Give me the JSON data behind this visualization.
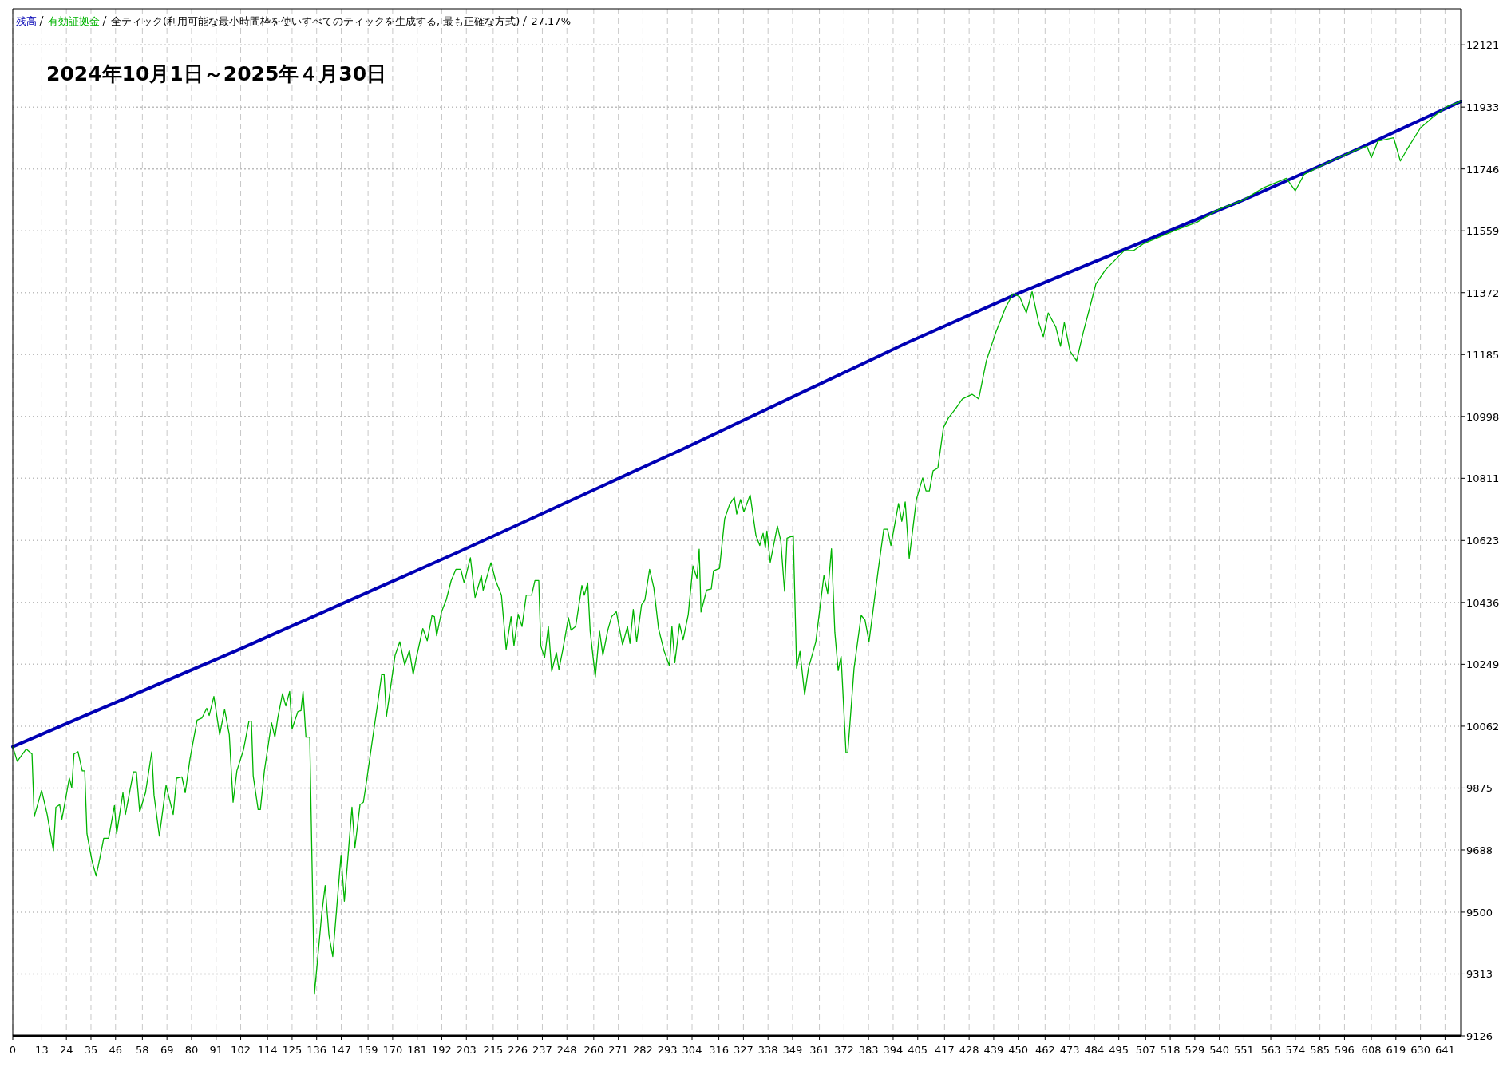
{
  "chart_data": {
    "type": "line",
    "title": "2024年10月1日～2025年４月30日",
    "subtitle": "全ティック(利用可能な最小時間枠を使いすべてのティックを生成する, 最も正確な方式)",
    "annotations": [
      "27.17%"
    ],
    "legend": "top left",
    "grid": true,
    "line_style": "solid",
    "xlim": [
      0,
      648
    ],
    "ylim": [
      9126,
      12230
    ],
    "xticks": [
      0,
      13,
      24,
      35,
      46,
      58,
      69,
      80,
      91,
      102,
      114,
      125,
      136,
      147,
      159,
      170,
      181,
      192,
      203,
      215,
      226,
      237,
      248,
      260,
      271,
      282,
      293,
      304,
      316,
      327,
      338,
      349,
      361,
      372,
      383,
      394,
      405,
      417,
      428,
      439,
      450,
      462,
      473,
      484,
      495,
      507,
      518,
      529,
      540,
      551,
      563,
      574,
      585,
      596,
      608,
      619,
      630,
      641
    ],
    "yticks": [
      9126,
      9313,
      9500,
      9688,
      9875,
      10062,
      10249,
      10436,
      10623,
      10811,
      10998,
      11185,
      11372,
      11559,
      11746,
      11933,
      12121
    ],
    "series": [
      {
        "name": "残高",
        "color": "#0000b4",
        "x": [
          0,
          100,
          200,
          300,
          400,
          450,
          500,
          550,
          600,
          648
        ],
        "values": [
          10000,
          10290,
          10590,
          10900,
          11220,
          11370,
          11510,
          11650,
          11800,
          11950
        ]
      },
      {
        "name": "有効証拠金",
        "color": "#00b400",
        "x": [
          0,
          2,
          6,
          8.6,
          9.6,
          12.9,
          15.4,
          18.2,
          19.3,
          21,
          22,
          25.3,
          26.4,
          27.4,
          29.2,
          31.1,
          32.2,
          33.2,
          35.4,
          37.3,
          39,
          40.7,
          42.9,
          45.5,
          46.5,
          49.3,
          50.4,
          54,
          55.3,
          56.8,
          59.4,
          62.2,
          63.2,
          65.6,
          68.6,
          71.8,
          73.3,
          75.7,
          77.2,
          79.3,
          82.5,
          84.7,
          86.8,
          87.9,
          90,
          92.6,
          94.8,
          96.9,
          98.6,
          100.3,
          103.3,
          105.7,
          106.8,
          107.6,
          109.8,
          110.8,
          112.6,
          115.8,
          117.3,
          118.6,
          120.7,
          122.2,
          123.9,
          125,
          127.6,
          129,
          129.9,
          131.2,
          132.9,
          134,
          135,
          138.3,
          139.8,
          141.5,
          143.2,
          146.9,
          148.4,
          151.8,
          153.1,
          155.4,
          156.9,
          158.2,
          160.8,
          163,
          165.1,
          166.2,
          167.2,
          171.1,
          173.2,
          175.4,
          177.5,
          179.2,
          180.5,
          183.5,
          185.5,
          187.6,
          188.7,
          189.7,
          191.9,
          194,
          196.2,
          198.3,
          200.5,
          202,
          204.8,
          206.9,
          209.7,
          210.5,
          214,
          216.1,
          218.7,
          220.8,
          223,
          224.3,
          226.2,
          227.9,
          229.8,
          232.2,
          233.7,
          235.4,
          236.3,
          238,
          239.7,
          241.2,
          243.3,
          244.4,
          246.1,
          248.7,
          249.8,
          251.9,
          254.7,
          255.8,
          257.3,
          258.4,
          260.7,
          262.6,
          264.1,
          266.3,
          268,
          270.1,
          272.9,
          275.1,
          276.2,
          277.7,
          279.2,
          281.4,
          282.9,
          285,
          286.9,
          289,
          291.4,
          293.9,
          295,
          296.3,
          298.4,
          300,
          302.3,
          304.4,
          306.2,
          307.2,
          308,
          310.5,
          312.6,
          313.6,
          316.3,
          318.6,
          320.8,
          322.9,
          324,
          325.7,
          327.2,
          330,
          332.6,
          334.3,
          335.8,
          336.8,
          337.5,
          339,
          342.2,
          343.7,
          345.4,
          346.5,
          349.3,
          350.8,
          352.3,
          354.4,
          356.1,
          359.4,
          363,
          364.7,
          366.4,
          367.9,
          369.4,
          370.7,
          372.9,
          373.7,
          376.5,
          379.7,
          381.4,
          383.2,
          387.2,
          389.8,
          391.5,
          393,
          394.7,
          396.4,
          397.9,
          399.4,
          401.2,
          404.4,
          407.2,
          408.7,
          410.2,
          411.9,
          414,
          416.5,
          418.7,
          422,
          425,
          429.3,
          432.3,
          435.7,
          440,
          444.2,
          447.6,
          450.6,
          453.6,
          456.2,
          459.1,
          461.2,
          463.4,
          466.8,
          468.9,
          470.6,
          473.2,
          476.1,
          479.1,
          482.5,
          484.7,
          489,
          493.2,
          497.4,
          501.7,
          506,
          520,
          530,
          540,
          550,
          560,
          570,
          574,
          578,
          590,
          600,
          606,
          608,
          611,
          618,
          621,
          624,
          630,
          636,
          642,
          648
        ],
        "values": [
          10000,
          9956,
          9993,
          9978,
          9788,
          9868,
          9795,
          9686,
          9817,
          9825,
          9781,
          9905,
          9876,
          9978,
          9985,
          9927,
          9927,
          9737,
          9657,
          9609,
          9664,
          9723,
          9723,
          9822,
          9737,
          9861,
          9795,
          9924,
          9924,
          9803,
          9861,
          9985,
          9854,
          9730,
          9883,
          9795,
          9905,
          9909,
          9861,
          9963,
          10080,
          10087,
          10116,
          10094,
          10152,
          10036,
          10113,
          10036,
          9832,
          9927,
          9992,
          10077,
          10077,
          9912,
          9810,
          9810,
          9927,
          10072,
          10029,
          10087,
          10160,
          10123,
          10167,
          10054,
          10106,
          10109,
          10167,
          10029,
          10029,
          9621,
          9252,
          9497,
          9580,
          9431,
          9366,
          9672,
          9533,
          9817,
          9694,
          9825,
          9832,
          9890,
          10014,
          10116,
          10218,
          10218,
          10090,
          10276,
          10317,
          10247,
          10291,
          10218,
          10265,
          10357,
          10320,
          10396,
          10393,
          10335,
          10408,
          10444,
          10502,
          10536,
          10536,
          10495,
          10571,
          10451,
          10517,
          10473,
          10556,
          10502,
          10458,
          10294,
          10393,
          10305,
          10400,
          10363,
          10458,
          10458,
          10502,
          10502,
          10305,
          10269,
          10363,
          10228,
          10284,
          10233,
          10291,
          10390,
          10352,
          10363,
          10487,
          10458,
          10495,
          10349,
          10211,
          10349,
          10276,
          10352,
          10393,
          10408,
          10308,
          10363,
          10312,
          10415,
          10317,
          10429,
          10444,
          10536,
          10480,
          10357,
          10291,
          10244,
          10363,
          10254,
          10371,
          10323,
          10400,
          10546,
          10509,
          10597,
          10407,
          10473,
          10477,
          10531,
          10539,
          10689,
          10732,
          10754,
          10703,
          10747,
          10710,
          10761,
          10638,
          10608,
          10645,
          10601,
          10652,
          10557,
          10667,
          10623,
          10470,
          10630,
          10638,
          10237,
          10288,
          10157,
          10237,
          10317,
          10517,
          10463,
          10598,
          10346,
          10230,
          10273,
          9982,
          9982,
          10237,
          10397,
          10383,
          10317,
          10528,
          10657,
          10657,
          10608,
          10671,
          10735,
          10681,
          10740,
          10569,
          10747,
          10812,
          10773,
          10773,
          10834,
          10842,
          10964,
          10993,
          11022,
          11051,
          11065,
          11051,
          11166,
          11253,
          11325,
          11369,
          11360,
          11311,
          11375,
          11282,
          11239,
          11311,
          11268,
          11210,
          11282,
          11195,
          11166,
          11253,
          11340,
          11398,
          11441,
          11470,
          11499,
          11500,
          11520,
          11560,
          11585,
          11625,
          11650,
          11690,
          11718,
          11680,
          11730,
          11770,
          11800,
          11815,
          11780,
          11830,
          11840,
          11770,
          11805,
          11870,
          11905,
          11935,
          11950
        ]
      }
    ]
  }
}
